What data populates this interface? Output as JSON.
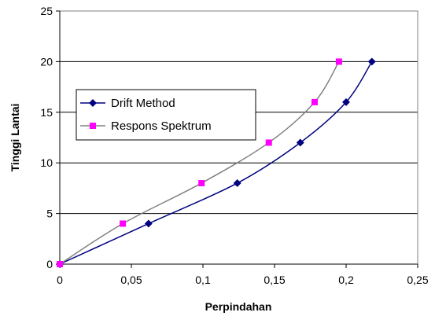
{
  "chart_data": {
    "type": "line",
    "title": "",
    "xlabel": "Perpindahan",
    "ylabel": "Tinggi Lantai",
    "xlim": [
      0,
      0.25
    ],
    "ylim": [
      0,
      25
    ],
    "x_ticks": [
      "0",
      "0,05",
      "0,1",
      "0,15",
      "0,2",
      "0,25"
    ],
    "y_ticks": [
      "0",
      "5",
      "10",
      "15",
      "20",
      "25"
    ],
    "grid": "horizontal",
    "legend_position": "left-middle",
    "series": [
      {
        "name": "Drift Method",
        "color": "#000080",
        "marker": "diamond",
        "points": [
          [
            0,
            0
          ],
          [
            0.062,
            4
          ],
          [
            0.124,
            8
          ],
          [
            0.168,
            12
          ],
          [
            0.2,
            16
          ],
          [
            0.218,
            20
          ]
        ]
      },
      {
        "name": "Respons Spektrum",
        "color": "#808080",
        "marker_color": "#ff00ff",
        "marker": "square",
        "points": [
          [
            0,
            0
          ],
          [
            0.044,
            4
          ],
          [
            0.099,
            8
          ],
          [
            0.146,
            12
          ],
          [
            0.178,
            16
          ],
          [
            0.195,
            20
          ]
        ]
      }
    ]
  }
}
